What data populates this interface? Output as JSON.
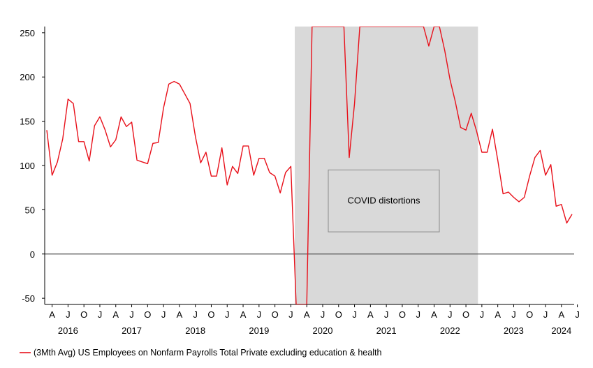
{
  "chart_data": {
    "type": "line",
    "title": "",
    "xlabel": "",
    "ylabel": "",
    "ylim": [
      -57,
      257
    ],
    "yticks": [
      -50,
      0,
      50,
      100,
      150,
      200,
      250
    ],
    "grid": false,
    "zero_line": true,
    "legend_position": "bottom-left",
    "colors": {
      "series": "#e8101a",
      "shade": "#d9d9d9",
      "zero_line": "#555555",
      "axis": "#000000"
    },
    "x_start": "2016-03",
    "x_end": "2024-06",
    "month_ticks": [
      {
        "date": "2016-04",
        "label": "A"
      },
      {
        "date": "2016-07",
        "label": "J"
      },
      {
        "date": "2016-10",
        "label": "O"
      },
      {
        "date": "2017-01",
        "label": "J"
      },
      {
        "date": "2017-04",
        "label": "A"
      },
      {
        "date": "2017-07",
        "label": "J"
      },
      {
        "date": "2017-10",
        "label": "O"
      },
      {
        "date": "2018-01",
        "label": "J"
      },
      {
        "date": "2018-04",
        "label": "A"
      },
      {
        "date": "2018-07",
        "label": "J"
      },
      {
        "date": "2018-10",
        "label": "O"
      },
      {
        "date": "2019-01",
        "label": "J"
      },
      {
        "date": "2019-04",
        "label": "A"
      },
      {
        "date": "2019-07",
        "label": "J"
      },
      {
        "date": "2019-10",
        "label": "O"
      },
      {
        "date": "2020-01",
        "label": "J"
      },
      {
        "date": "2020-04",
        "label": "A"
      },
      {
        "date": "2020-07",
        "label": "J"
      },
      {
        "date": "2020-10",
        "label": "O"
      },
      {
        "date": "2021-01",
        "label": "J"
      },
      {
        "date": "2021-04",
        "label": "A"
      },
      {
        "date": "2021-07",
        "label": "J"
      },
      {
        "date": "2021-10",
        "label": "O"
      },
      {
        "date": "2022-01",
        "label": "J"
      },
      {
        "date": "2022-04",
        "label": "A"
      },
      {
        "date": "2022-07",
        "label": "J"
      },
      {
        "date": "2022-10",
        "label": "O"
      },
      {
        "date": "2023-01",
        "label": "J"
      },
      {
        "date": "2023-04",
        "label": "A"
      },
      {
        "date": "2023-07",
        "label": "J"
      },
      {
        "date": "2023-10",
        "label": "O"
      },
      {
        "date": "2024-01",
        "label": "J"
      },
      {
        "date": "2024-04",
        "label": "A"
      },
      {
        "date": "2024-07",
        "label": "J"
      }
    ],
    "year_labels": [
      {
        "date": "2016-07",
        "label": "2016"
      },
      {
        "date": "2017-07",
        "label": "2017"
      },
      {
        "date": "2018-07",
        "label": "2018"
      },
      {
        "date": "2019-07",
        "label": "2019"
      },
      {
        "date": "2020-07",
        "label": "2020"
      },
      {
        "date": "2021-07",
        "label": "2021"
      },
      {
        "date": "2022-07",
        "label": "2022"
      },
      {
        "date": "2023-07",
        "label": "2023"
      },
      {
        "date": "2024-04",
        "label": "2024"
      }
    ],
    "shaded_region": {
      "from": "2020-02",
      "to": "2022-12"
    },
    "annotation": {
      "text": "COVID distortions"
    },
    "series": [
      {
        "name": "(3Mth Avg) US Employees on Nonfarm Payrolls Total Private excluding education & health",
        "points": [
          [
            "2016-03",
            140
          ],
          [
            "2016-04",
            89
          ],
          [
            "2016-05",
            104
          ],
          [
            "2016-06",
            130
          ],
          [
            "2016-07",
            175
          ],
          [
            "2016-08",
            170
          ],
          [
            "2016-09",
            127
          ],
          [
            "2016-10",
            127
          ],
          [
            "2016-11",
            105
          ],
          [
            "2016-12",
            145
          ],
          [
            "2017-01",
            155
          ],
          [
            "2017-02",
            140
          ],
          [
            "2017-03",
            121
          ],
          [
            "2017-04",
            129
          ],
          [
            "2017-05",
            155
          ],
          [
            "2017-06",
            144
          ],
          [
            "2017-07",
            149
          ],
          [
            "2017-08",
            106
          ],
          [
            "2017-09",
            104
          ],
          [
            "2017-10",
            102
          ],
          [
            "2017-11",
            125
          ],
          [
            "2017-12",
            126
          ],
          [
            "2018-01",
            165
          ],
          [
            "2018-02",
            192
          ],
          [
            "2018-03",
            195
          ],
          [
            "2018-04",
            192
          ],
          [
            "2018-05",
            181
          ],
          [
            "2018-06",
            170
          ],
          [
            "2018-07",
            133
          ],
          [
            "2018-08",
            103
          ],
          [
            "2018-09",
            115
          ],
          [
            "2018-10",
            88
          ],
          [
            "2018-11",
            88
          ],
          [
            "2018-12",
            120
          ],
          [
            "2019-01",
            78
          ],
          [
            "2019-02",
            99
          ],
          [
            "2019-03",
            91
          ],
          [
            "2019-04",
            122
          ],
          [
            "2019-05",
            122
          ],
          [
            "2019-06",
            89
          ],
          [
            "2019-07",
            108
          ],
          [
            "2019-08",
            108
          ],
          [
            "2019-09",
            92
          ],
          [
            "2019-10",
            88
          ],
          [
            "2019-11",
            69
          ],
          [
            "2019-12",
            92
          ],
          [
            "2020-01",
            99
          ],
          [
            "2020-02",
            -57
          ],
          [
            "2020-03",
            -57
          ],
          [
            "2020-04",
            -57
          ],
          [
            "2020-05",
            257
          ],
          [
            "2020-06",
            257
          ],
          [
            "2020-07",
            257
          ],
          [
            "2020-08",
            257
          ],
          [
            "2020-09",
            257
          ],
          [
            "2020-10",
            257
          ],
          [
            "2020-11",
            257
          ],
          [
            "2020-12",
            109
          ],
          [
            "2021-01",
            170
          ],
          [
            "2021-02",
            257
          ],
          [
            "2021-03",
            257
          ],
          [
            "2021-04",
            257
          ],
          [
            "2021-05",
            257
          ],
          [
            "2021-06",
            257
          ],
          [
            "2021-07",
            257
          ],
          [
            "2021-08",
            257
          ],
          [
            "2021-09",
            257
          ],
          [
            "2021-10",
            257
          ],
          [
            "2021-11",
            257
          ],
          [
            "2021-12",
            257
          ],
          [
            "2022-01",
            257
          ],
          [
            "2022-02",
            257
          ],
          [
            "2022-03",
            235
          ],
          [
            "2022-04",
            257
          ],
          [
            "2022-05",
            257
          ],
          [
            "2022-06",
            230
          ],
          [
            "2022-07",
            197
          ],
          [
            "2022-08",
            172
          ],
          [
            "2022-09",
            143
          ],
          [
            "2022-10",
            140
          ],
          [
            "2022-11",
            159
          ],
          [
            "2022-12",
            139
          ],
          [
            "2023-01",
            115
          ],
          [
            "2023-02",
            115
          ],
          [
            "2023-03",
            141
          ],
          [
            "2023-04",
            106
          ],
          [
            "2023-05",
            68
          ],
          [
            "2023-06",
            70
          ],
          [
            "2023-07",
            64
          ],
          [
            "2023-08",
            59
          ],
          [
            "2023-09",
            64
          ],
          [
            "2023-10",
            88
          ],
          [
            "2023-11",
            109
          ],
          [
            "2023-12",
            117
          ],
          [
            "2024-01",
            89
          ],
          [
            "2024-02",
            101
          ],
          [
            "2024-03",
            54
          ],
          [
            "2024-04",
            56
          ],
          [
            "2024-05",
            35
          ],
          [
            "2024-06",
            45
          ]
        ]
      }
    ]
  }
}
